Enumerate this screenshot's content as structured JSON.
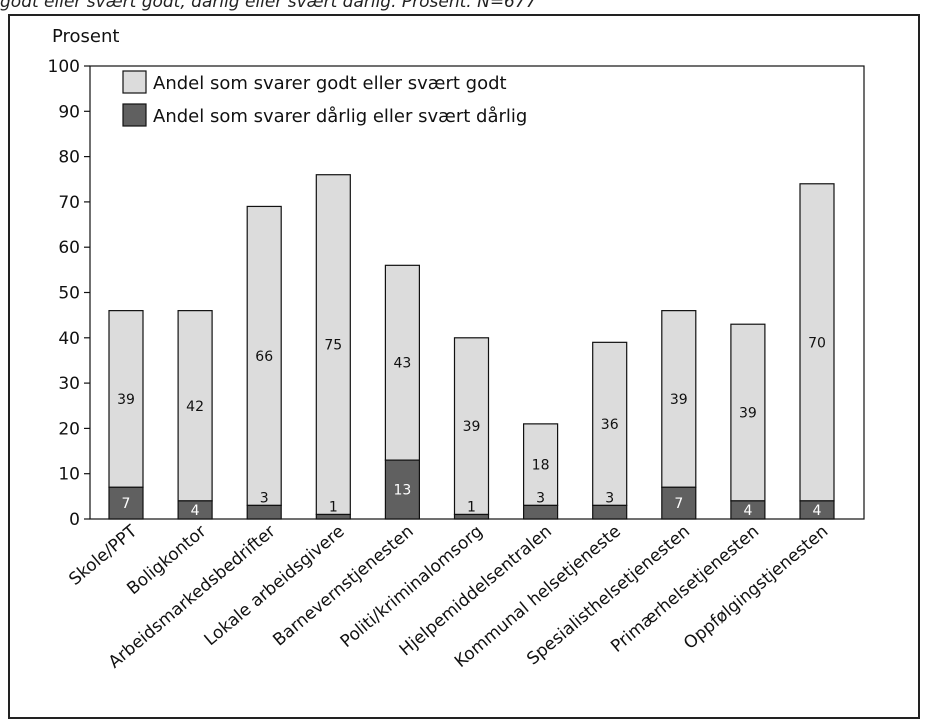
{
  "caption": "godt eller svært godt, dårlig eller svært dårlig. Prosent. N=677",
  "colors": {
    "good": "#dcdcdc",
    "bad": "#606060",
    "stroke": "#111111"
  },
  "chart_data": {
    "type": "bar",
    "stacked": true,
    "ylabel": "Prosent",
    "ylim": [
      0,
      100
    ],
    "yticks": [
      0,
      10,
      20,
      30,
      40,
      50,
      60,
      70,
      80,
      90,
      100
    ],
    "categories": [
      "Skole/PPT",
      "Boligkontor",
      "Arbeidsmarkedsbedrifter",
      "Lokale arbeidsgivere",
      "Barnevernstjenesten",
      "Politi/kriminalomsorg",
      "Hjelpemiddelsentralen",
      "Kommunal helsetjeneste",
      "Spesialisthelsetjenesten",
      "Primærhelsetjenesten",
      "Oppfølgingstjenesten"
    ],
    "series": [
      {
        "name": "Andel som svarer dårlig eller svært dårlig",
        "values": [
          7,
          4,
          3,
          1,
          13,
          1,
          3,
          3,
          7,
          4,
          4
        ]
      },
      {
        "name": "Andel som svarer godt eller svært godt",
        "values": [
          39,
          42,
          66,
          75,
          43,
          39,
          18,
          36,
          39,
          39,
          70
        ]
      }
    ],
    "legend": [
      {
        "label": "Andel som svarer godt eller svært godt",
        "swatch": "good"
      },
      {
        "label": "Andel som svarer dårlig eller svært dårlig",
        "swatch": "bad"
      }
    ],
    "legend_position": "top-left"
  }
}
